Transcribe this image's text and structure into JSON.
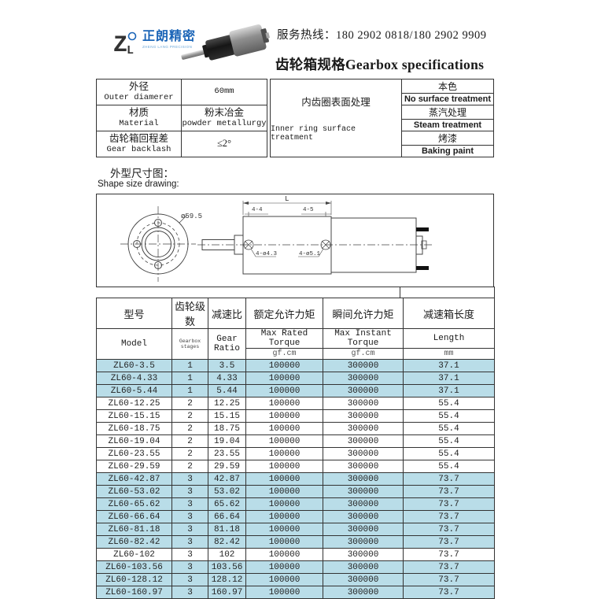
{
  "header": {
    "brand_cn": "正朗精密",
    "brand_en": "ZHENG LANG PRECISION",
    "hotline": "服务热线：180 2902 0818/180 2902 9909",
    "title": "齿轮箱规格Gearbox specifications"
  },
  "specs_left": {
    "rows": [
      {
        "label": [
          "外径",
          "Outer diamerer"
        ],
        "value": [
          "60mm"
        ]
      },
      {
        "label": [
          "材质",
          "Material"
        ],
        "value": [
          "粉末冶金",
          "powder metallurgy"
        ]
      },
      {
        "label": [
          "齿轮箱回程差",
          "Gear backlash"
        ],
        "value": [
          "≤2°"
        ]
      }
    ]
  },
  "specs_right": {
    "label_cn": "内齿圈表面处理",
    "label_en": "Inner ring surface treatment",
    "options": [
      "本色",
      "No surface treatment",
      "蒸汽处理",
      "Steam treatment",
      "烤漆",
      "Baking paint"
    ]
  },
  "drawing": {
    "label_cn": "外型尺寸图：",
    "label_en": "Shape size drawing:",
    "annotations": {
      "diameter": "ø59.5",
      "length": "L",
      "dim1": "4-4",
      "dim2": "4-5",
      "holes1": "4-ø4.3",
      "holes2": "4-ø5.1"
    }
  },
  "table": {
    "columns": [
      {
        "cn": "型号",
        "en": "Model",
        "unit": ""
      },
      {
        "cn": "齿轮级数",
        "en": "Gearbox stages",
        "unit": ""
      },
      {
        "cn": "减速比",
        "en": "Gear Ratio",
        "unit": ""
      },
      {
        "cn": "额定允许力矩",
        "en": "Max Rated Torque",
        "unit": "gf.cm"
      },
      {
        "cn": "瞬间允许力矩",
        "en": "Max Instant Torque",
        "unit": "gf.cm"
      },
      {
        "cn": "减速箱长度",
        "en": "Length",
        "unit": "mm"
      }
    ],
    "rows": [
      {
        "model": "ZL60-3.5",
        "stages": "1",
        "ratio": "3.5",
        "rated": "100000",
        "instant": "300000",
        "length": "37.1",
        "highlight": true
      },
      {
        "model": "ZL60-4.33",
        "stages": "1",
        "ratio": "4.33",
        "rated": "100000",
        "instant": "300000",
        "length": "37.1",
        "highlight": true
      },
      {
        "model": "ZL60-5.44",
        "stages": "1",
        "ratio": "5.44",
        "rated": "100000",
        "instant": "300000",
        "length": "37.1",
        "highlight": true
      },
      {
        "model": "ZL60-12.25",
        "stages": "2",
        "ratio": "12.25",
        "rated": "100000",
        "instant": "300000",
        "length": "55.4",
        "highlight": false
      },
      {
        "model": "ZL60-15.15",
        "stages": "2",
        "ratio": "15.15",
        "rated": "100000",
        "instant": "300000",
        "length": "55.4",
        "highlight": false
      },
      {
        "model": "ZL60-18.75",
        "stages": "2",
        "ratio": "18.75",
        "rated": "100000",
        "instant": "300000",
        "length": "55.4",
        "highlight": false
      },
      {
        "model": "ZL60-19.04",
        "stages": "2",
        "ratio": "19.04",
        "rated": "100000",
        "instant": "300000",
        "length": "55.4",
        "highlight": false
      },
      {
        "model": "ZL60-23.55",
        "stages": "2",
        "ratio": "23.55",
        "rated": "100000",
        "instant": "300000",
        "length": "55.4",
        "highlight": false
      },
      {
        "model": "ZL60-29.59",
        "stages": "2",
        "ratio": "29.59",
        "rated": "100000",
        "instant": "300000",
        "length": "55.4",
        "highlight": false
      },
      {
        "model": "ZL60-42.87",
        "stages": "3",
        "ratio": "42.87",
        "rated": "100000",
        "instant": "300000",
        "length": "73.7",
        "highlight": true
      },
      {
        "model": "ZL60-53.02",
        "stages": "3",
        "ratio": "53.02",
        "rated": "100000",
        "instant": "300000",
        "length": "73.7",
        "highlight": true
      },
      {
        "model": "ZL60-65.62",
        "stages": "3",
        "ratio": "65.62",
        "rated": "100000",
        "instant": "300000",
        "length": "73.7",
        "highlight": true
      },
      {
        "model": "ZL60-66.64",
        "stages": "3",
        "ratio": "66.64",
        "rated": "100000",
        "instant": "300000",
        "length": "73.7",
        "highlight": true
      },
      {
        "model": "ZL60-81.18",
        "stages": "3",
        "ratio": "81.18",
        "rated": "100000",
        "instant": "300000",
        "length": "73.7",
        "highlight": true
      },
      {
        "model": "ZL60-82.42",
        "stages": "3",
        "ratio": "82.42",
        "rated": "100000",
        "instant": "300000",
        "length": "73.7",
        "highlight": true
      },
      {
        "model": "ZL60-102",
        "stages": "3",
        "ratio": "102",
        "rated": "100000",
        "instant": "300000",
        "length": "73.7",
        "highlight": false
      },
      {
        "model": "ZL60-103.56",
        "stages": "3",
        "ratio": "103.56",
        "rated": "100000",
        "instant": "300000",
        "length": "73.7",
        "highlight": true
      },
      {
        "model": "ZL60-128.12",
        "stages": "3",
        "ratio": "128.12",
        "rated": "100000",
        "instant": "300000",
        "length": "73.7",
        "highlight": true
      },
      {
        "model": "ZL60-160.97",
        "stages": "3",
        "ratio": "160.97",
        "rated": "100000",
        "instant": "300000",
        "length": "73.7",
        "highlight": true
      }
    ]
  },
  "colors": {
    "row_highlight": "#b9dde8",
    "table_border": "#333333",
    "logo_blue": "#1a64b7",
    "logo_light_blue": "#6aa6d8"
  }
}
